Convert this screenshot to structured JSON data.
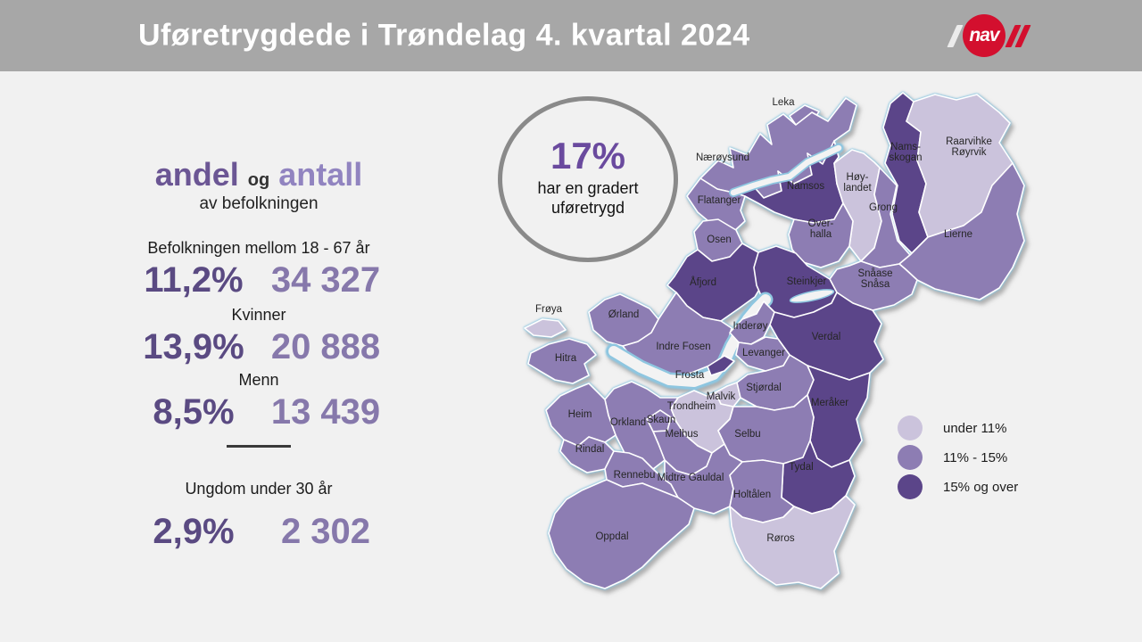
{
  "header": {
    "title": "Uføretrygdede i Trøndelag 4. kvartal 2024",
    "logo_text": "nav"
  },
  "stats": {
    "heading": {
      "part1": "andel",
      "connector": "og",
      "part2": "antall",
      "subtitle": "av befolkningen"
    },
    "rows": [
      {
        "label": "Befolkningen mellom 18 - 67 år",
        "percent": "11,2%",
        "count": "34 327"
      },
      {
        "label": "Kvinner",
        "percent": "13,9%",
        "count": "20 888"
      },
      {
        "label": "Menn",
        "percent": "8,5%",
        "count": "13 439"
      }
    ],
    "youth": {
      "label": "Ungdom under 30 år",
      "percent": "2,9%",
      "count": "2 302"
    }
  },
  "gradert": {
    "percent": "17%",
    "line1": "har en gradert",
    "line2": "uføretrygd"
  },
  "legend": {
    "items": [
      {
        "label": "under 11%",
        "color": "#cbc3dc"
      },
      {
        "label": "11% - 15%",
        "color": "#8d7db3"
      },
      {
        "label": "15% og over",
        "color": "#5b4589"
      }
    ]
  },
  "map": {
    "municipalities": [
      {
        "name": "Leka",
        "category": 1
      },
      {
        "name": "Nærøysund",
        "category": 1
      },
      {
        "name": "Namsskogan",
        "label": "Nams-|skogan",
        "category": 2
      },
      {
        "name": "Raarvihke Røyrvik",
        "label": "Raarvihke|Røyrvik",
        "category": 0
      },
      {
        "name": "Namsos",
        "category": 2
      },
      {
        "name": "Høylandet",
        "label": "Høy-|landet",
        "category": 0
      },
      {
        "name": "Flatanger",
        "category": 1
      },
      {
        "name": "Overhalla",
        "label": "Over-|halla",
        "category": 1
      },
      {
        "name": "Grong",
        "category": 1
      },
      {
        "name": "Lierne",
        "category": 1
      },
      {
        "name": "Snåase Snåsa",
        "label": "Snåase|Snåsa",
        "category": 1
      },
      {
        "name": "Osen",
        "category": 1
      },
      {
        "name": "Åfjord",
        "category": 2
      },
      {
        "name": "Steinkjer",
        "category": 2
      },
      {
        "name": "Verdal",
        "category": 2
      },
      {
        "name": "Inderøy",
        "category": 1
      },
      {
        "name": "Levanger",
        "category": 1
      },
      {
        "name": "Frosta",
        "category": 2
      },
      {
        "name": "Indre Fosen",
        "category": 1
      },
      {
        "name": "Ørland",
        "category": 1
      },
      {
        "name": "Frøya",
        "category": 0
      },
      {
        "name": "Hitra",
        "category": 1
      },
      {
        "name": "Trondheim",
        "category": 0
      },
      {
        "name": "Malvik",
        "category": 0
      },
      {
        "name": "Stjørdal",
        "category": 1
      },
      {
        "name": "Meråker",
        "category": 2
      },
      {
        "name": "Selbu",
        "category": 1
      },
      {
        "name": "Tydal",
        "category": 2
      },
      {
        "name": "Skaun",
        "category": 1
      },
      {
        "name": "Melhus",
        "category": 1
      },
      {
        "name": "Orkland",
        "category": 1
      },
      {
        "name": "Heim",
        "category": 1
      },
      {
        "name": "Rindal",
        "category": 1
      },
      {
        "name": "Rennebu",
        "category": 1
      },
      {
        "name": "Midtre Gauldal",
        "category": 1
      },
      {
        "name": "Holtålen",
        "category": 1
      },
      {
        "name": "Oppdal",
        "category": 1
      },
      {
        "name": "Røros",
        "category": 0
      }
    ]
  },
  "colors": {
    "header_bar": "#a7a7a7",
    "background": "#f1f1f1",
    "nav_red": "#d30f2e",
    "percent_text": "#5a4a82",
    "count_text": "#8678ab",
    "coast_blue": "#8ec6e0",
    "circle_border": "#8a8a8a"
  }
}
